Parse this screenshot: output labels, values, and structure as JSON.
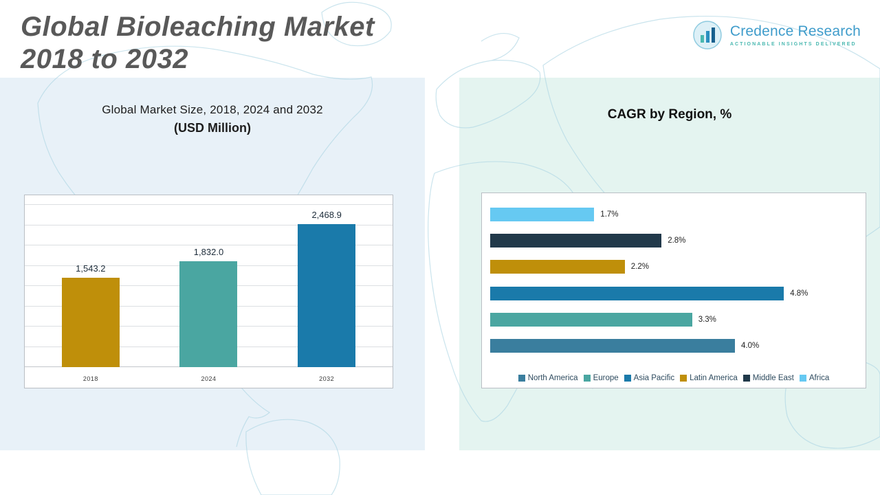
{
  "page": {
    "title_line1": "Global Bioleaching Market",
    "title_line2": "2018 to 2032"
  },
  "logo": {
    "name": "Credence Research",
    "tagline": "Actionable Insights Delivered"
  },
  "left_chart": {
    "title_line1": "Global Market Size, 2018, 2024 and 2032",
    "title_line2": "(USD Million)"
  },
  "right_chart": {
    "title": "CAGR by Region, %"
  },
  "chart_data": [
    {
      "type": "bar",
      "title": "Global Market Size, 2018, 2024 and 2032 (USD Million)",
      "categories": [
        "2018",
        "2024",
        "2032"
      ],
      "values": [
        1543.2,
        1832.0,
        2468.9
      ],
      "value_labels": [
        "1,543.2",
        "1,832.0",
        "2,468.9"
      ],
      "colors": [
        "#bf8f0a",
        "#4aa6a1",
        "#1a7aaa"
      ],
      "ylim": [
        0,
        2800
      ],
      "grid": true,
      "legend_position": "none"
    },
    {
      "type": "bar",
      "orientation": "horizontal",
      "title": "CAGR by Region, %",
      "categories": [
        "Africa",
        "Middle East",
        "Latin America",
        "Asia Pacific",
        "Europe",
        "North America"
      ],
      "values": [
        1.7,
        2.8,
        2.2,
        4.8,
        3.3,
        4.0
      ],
      "value_labels": [
        "1.7%",
        "2.8%",
        "2.2%",
        "4.8%",
        "3.3%",
        "4.0%"
      ],
      "colors": [
        "#66c9f2",
        "#21394a",
        "#bf8f0a",
        "#1a7aaa",
        "#4aa6a1",
        "#3a7e9e"
      ],
      "xlim": [
        0,
        6
      ],
      "grid": false,
      "legend_position": "bottom",
      "legend": [
        {
          "label": "North America",
          "color": "#3a7e9e"
        },
        {
          "label": "Europe",
          "color": "#4aa6a1"
        },
        {
          "label": "Asia Pacific",
          "color": "#1a7aaa"
        },
        {
          "label": "Latin America",
          "color": "#bf8f0a"
        },
        {
          "label": "Middle East",
          "color": "#21394a"
        },
        {
          "label": "Africa",
          "color": "#66c9f2"
        }
      ]
    }
  ]
}
